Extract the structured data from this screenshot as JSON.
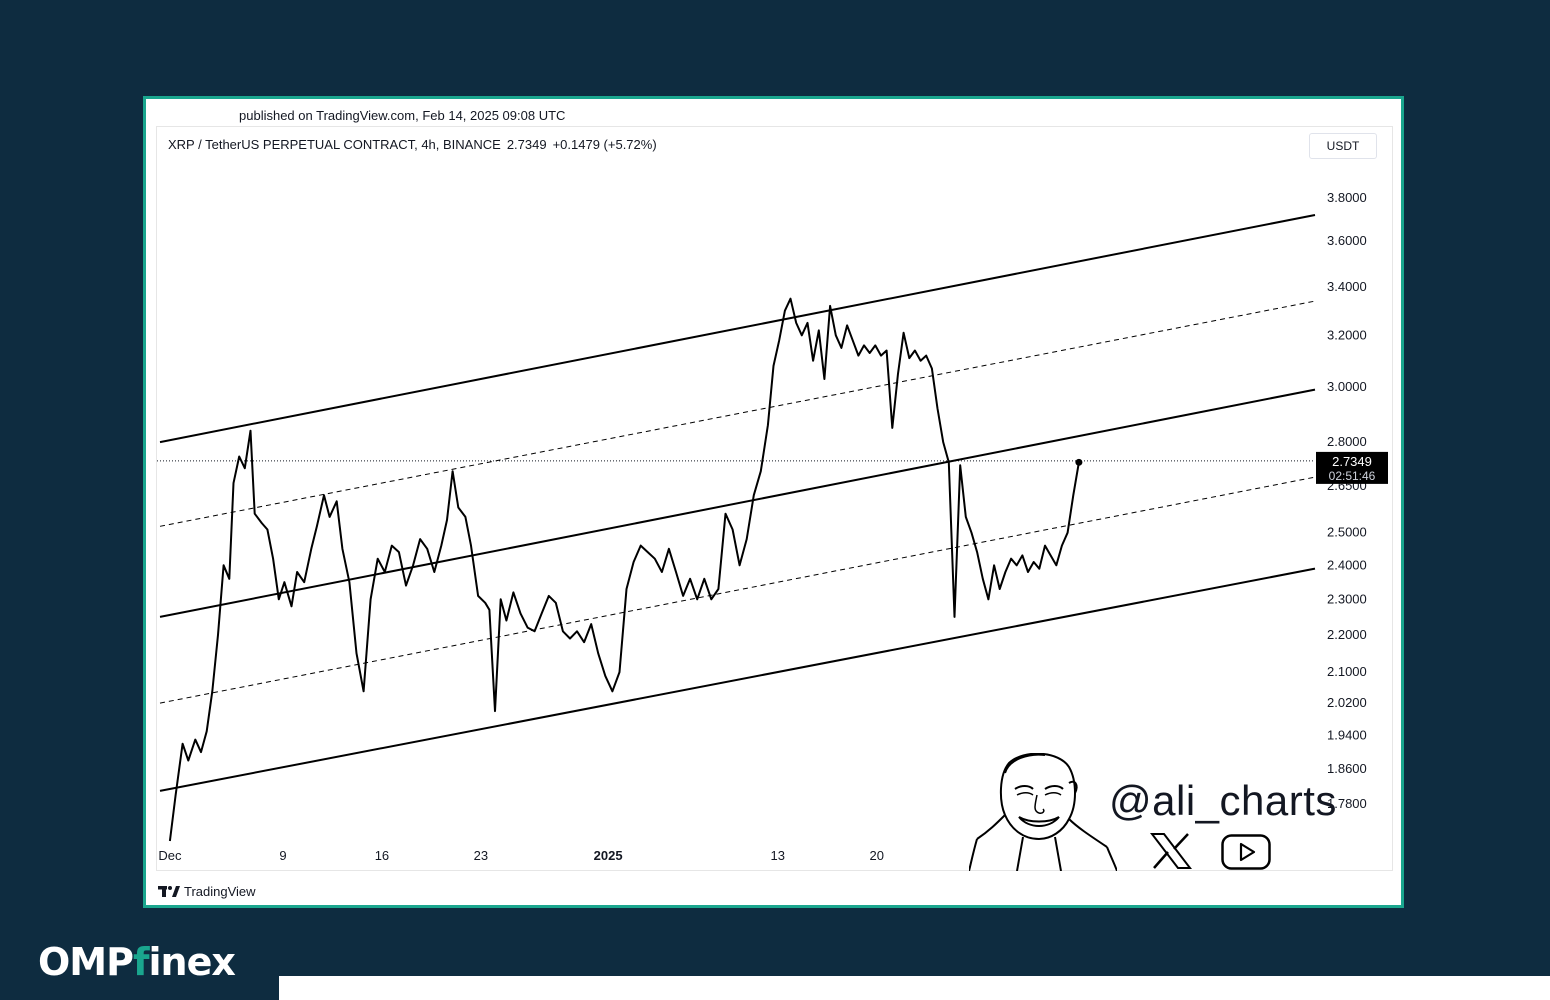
{
  "published": "published on TradingView.com, Feb 14, 2025 09:08 UTC",
  "header": {
    "symbol": "XRP / TetherUS PERPETUAL CONTRACT, 4h, BINANCE",
    "price": "2.7349",
    "change": "+0.1479 (+5.72%)",
    "currency_button": "USDT"
  },
  "tradingview_label": "TradingView",
  "watermark": {
    "handle": "@ali_charts",
    "icons": [
      "x-logo-icon",
      "youtube-icon"
    ]
  },
  "brand": {
    "part1": "OMP",
    "part2": "f",
    "part3": "i",
    "part4": "nex"
  },
  "colors": {
    "background": "#0e2c40",
    "frame_border": "#1aa68e",
    "line": "#000000",
    "price_tag": "#000000"
  },
  "chart_data": {
    "type": "line",
    "title": "XRP / TetherUS PERPETUAL CONTRACT, 4h, BINANCE",
    "xlabel": "",
    "ylabel": "",
    "y_scale": "log",
    "ylim": [
      1.7,
      3.95
    ],
    "y_ticks": [
      "3.8000",
      "3.6000",
      "3.4000",
      "3.2000",
      "3.0000",
      "2.8000",
      "2.6500",
      "2.5000",
      "2.4000",
      "2.3000",
      "2.2000",
      "2.1000",
      "2.0200",
      "1.9400",
      "1.8600",
      "1.7800"
    ],
    "x_ticks": [
      {
        "label": "Dec",
        "day": 1,
        "bold": false
      },
      {
        "label": "9",
        "day": 9,
        "bold": false
      },
      {
        "label": "16",
        "day": 16,
        "bold": false
      },
      {
        "label": "23",
        "day": 23,
        "bold": false
      },
      {
        "label": "2025",
        "day": 32,
        "bold": true
      },
      {
        "label": "13",
        "day": 44,
        "bold": false
      },
      {
        "label": "20",
        "day": 51,
        "bold": false
      }
    ],
    "x_range_days": [
      0.3,
      82.0
    ],
    "last_price": {
      "value": 2.7349,
      "label": "2.7349",
      "countdown": "02:51:46"
    },
    "channel": {
      "solid_lines": [
        {
          "from": [
            0.3,
            2.8
          ],
          "to": [
            82.0,
            3.72
          ]
        },
        {
          "from": [
            0.3,
            2.25
          ],
          "to": [
            82.0,
            2.99
          ]
        },
        {
          "from": [
            0.3,
            1.81
          ],
          "to": [
            82.0,
            2.39
          ]
        }
      ],
      "dashed_lines": [
        {
          "from": [
            0.3,
            2.52
          ],
          "to": [
            82.0,
            3.34
          ]
        },
        {
          "from": [
            0.3,
            2.02
          ],
          "to": [
            82.0,
            2.68
          ]
        }
      ]
    },
    "series": [
      {
        "points": [
          [
            1.0,
            1.7
          ],
          [
            1.4,
            1.8
          ],
          [
            1.9,
            1.92
          ],
          [
            2.3,
            1.88
          ],
          [
            2.8,
            1.93
          ],
          [
            3.2,
            1.9
          ],
          [
            3.6,
            1.95
          ],
          [
            4.0,
            2.05
          ],
          [
            4.4,
            2.2
          ],
          [
            4.8,
            2.4
          ],
          [
            5.2,
            2.36
          ],
          [
            5.5,
            2.66
          ],
          [
            5.9,
            2.75
          ],
          [
            6.3,
            2.71
          ],
          [
            6.7,
            2.84
          ],
          [
            7.0,
            2.56
          ],
          [
            7.5,
            2.53
          ],
          [
            7.9,
            2.51
          ],
          [
            8.3,
            2.42
          ],
          [
            8.7,
            2.3
          ],
          [
            9.1,
            2.35
          ],
          [
            9.6,
            2.28
          ],
          [
            10.0,
            2.38
          ],
          [
            10.5,
            2.35
          ],
          [
            11.0,
            2.45
          ],
          [
            11.4,
            2.52
          ],
          [
            11.9,
            2.62
          ],
          [
            12.3,
            2.55
          ],
          [
            12.8,
            2.6
          ],
          [
            13.2,
            2.45
          ],
          [
            13.7,
            2.35
          ],
          [
            14.2,
            2.15
          ],
          [
            14.7,
            2.05
          ],
          [
            15.2,
            2.3
          ],
          [
            15.7,
            2.42
          ],
          [
            16.2,
            2.38
          ],
          [
            16.7,
            2.46
          ],
          [
            17.2,
            2.44
          ],
          [
            17.7,
            2.34
          ],
          [
            18.2,
            2.4
          ],
          [
            18.7,
            2.48
          ],
          [
            19.2,
            2.45
          ],
          [
            19.7,
            2.38
          ],
          [
            20.2,
            2.46
          ],
          [
            20.6,
            2.54
          ],
          [
            21.0,
            2.7
          ],
          [
            21.4,
            2.58
          ],
          [
            21.9,
            2.55
          ],
          [
            22.3,
            2.46
          ],
          [
            22.8,
            2.31
          ],
          [
            23.3,
            2.29
          ],
          [
            23.6,
            2.27
          ],
          [
            24.0,
            2.0
          ],
          [
            24.4,
            2.3
          ],
          [
            24.8,
            2.24
          ],
          [
            25.3,
            2.32
          ],
          [
            25.8,
            2.26
          ],
          [
            26.3,
            2.22
          ],
          [
            26.8,
            2.21
          ],
          [
            27.3,
            2.26
          ],
          [
            27.8,
            2.31
          ],
          [
            28.3,
            2.29
          ],
          [
            28.8,
            2.21
          ],
          [
            29.3,
            2.19
          ],
          [
            29.8,
            2.21
          ],
          [
            30.3,
            2.18
          ],
          [
            30.8,
            2.23
          ],
          [
            31.3,
            2.15
          ],
          [
            31.8,
            2.09
          ],
          [
            32.3,
            2.05
          ],
          [
            32.8,
            2.1
          ],
          [
            33.3,
            2.33
          ],
          [
            33.8,
            2.41
          ],
          [
            34.3,
            2.46
          ],
          [
            34.8,
            2.44
          ],
          [
            35.3,
            2.42
          ],
          [
            35.8,
            2.38
          ],
          [
            36.3,
            2.45
          ],
          [
            36.8,
            2.38
          ],
          [
            37.3,
            2.31
          ],
          [
            37.8,
            2.36
          ],
          [
            38.3,
            2.3
          ],
          [
            38.8,
            2.36
          ],
          [
            39.3,
            2.3
          ],
          [
            39.8,
            2.33
          ],
          [
            40.3,
            2.56
          ],
          [
            40.8,
            2.51
          ],
          [
            41.3,
            2.4
          ],
          [
            41.8,
            2.48
          ],
          [
            42.3,
            2.62
          ],
          [
            42.8,
            2.7
          ],
          [
            43.3,
            2.86
          ],
          [
            43.7,
            3.08
          ],
          [
            44.1,
            3.18
          ],
          [
            44.5,
            3.3
          ],
          [
            44.9,
            3.35
          ],
          [
            45.3,
            3.25
          ],
          [
            45.7,
            3.2
          ],
          [
            46.1,
            3.25
          ],
          [
            46.5,
            3.1
          ],
          [
            46.9,
            3.22
          ],
          [
            47.3,
            3.03
          ],
          [
            47.7,
            3.32
          ],
          [
            48.1,
            3.2
          ],
          [
            48.5,
            3.15
          ],
          [
            48.9,
            3.24
          ],
          [
            49.3,
            3.18
          ],
          [
            49.7,
            3.12
          ],
          [
            50.1,
            3.16
          ],
          [
            50.5,
            3.13
          ],
          [
            50.9,
            3.16
          ],
          [
            51.3,
            3.12
          ],
          [
            51.7,
            3.14
          ],
          [
            52.1,
            2.85
          ],
          [
            52.5,
            3.05
          ],
          [
            52.9,
            3.21
          ],
          [
            53.3,
            3.11
          ],
          [
            53.7,
            3.14
          ],
          [
            54.1,
            3.1
          ],
          [
            54.5,
            3.12
          ],
          [
            54.9,
            3.07
          ],
          [
            55.3,
            2.92
          ],
          [
            55.7,
            2.8
          ],
          [
            56.1,
            2.73
          ],
          [
            56.5,
            2.25
          ],
          [
            56.9,
            2.72
          ],
          [
            57.3,
            2.55
          ],
          [
            57.7,
            2.5
          ],
          [
            58.1,
            2.44
          ],
          [
            58.5,
            2.36
          ],
          [
            58.9,
            2.3
          ],
          [
            59.3,
            2.4
          ],
          [
            59.7,
            2.33
          ],
          [
            60.1,
            2.38
          ],
          [
            60.5,
            2.42
          ],
          [
            60.9,
            2.4
          ],
          [
            61.3,
            2.43
          ],
          [
            61.7,
            2.38
          ],
          [
            62.1,
            2.41
          ],
          [
            62.5,
            2.39
          ],
          [
            62.9,
            2.46
          ],
          [
            63.3,
            2.43
          ],
          [
            63.7,
            2.4
          ],
          [
            64.1,
            2.46
          ],
          [
            64.5,
            2.5
          ],
          [
            64.9,
            2.62
          ],
          [
            65.3,
            2.73
          ]
        ]
      }
    ]
  }
}
